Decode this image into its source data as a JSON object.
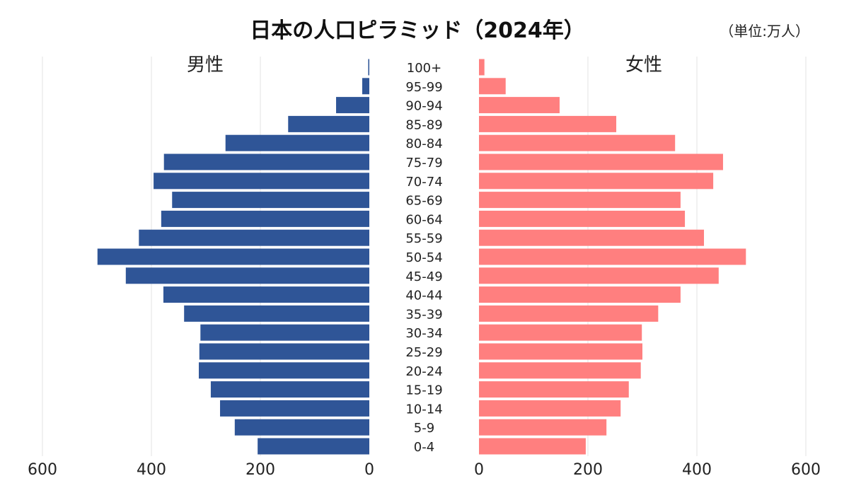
{
  "chart_data": {
    "type": "bar",
    "subtype": "population-pyramid",
    "title": "日本の人口ピラミッド（2024年）",
    "unit_label": "（単位:万人）",
    "categories": [
      "100+",
      "95-99",
      "90-94",
      "85-89",
      "80-84",
      "75-79",
      "70-74",
      "65-69",
      "60-64",
      "55-59",
      "50-54",
      "45-49",
      "40-44",
      "35-39",
      "30-34",
      "25-29",
      "20-24",
      "15-19",
      "10-14",
      "5-9",
      "0-4"
    ],
    "series": [
      {
        "name": "男性",
        "side": "left",
        "color": "#2F5597",
        "values": [
          2,
          13,
          61,
          149,
          264,
          377,
          396,
          362,
          382,
          423,
          499,
          447,
          378,
          340,
          310,
          312,
          313,
          291,
          274,
          247,
          205
        ]
      },
      {
        "name": "女性",
        "side": "right",
        "color": "#FF7F7F",
        "values": [
          10,
          49,
          148,
          252,
          360,
          448,
          430,
          370,
          378,
          413,
          490,
          440,
          370,
          329,
          299,
          300,
          297,
          275,
          260,
          234,
          196
        ]
      }
    ],
    "xlim": [
      0,
      600
    ],
    "ticks": [
      "600",
      "400",
      "200",
      "0"
    ],
    "ticks_right": [
      "0",
      "200",
      "400",
      "600"
    ],
    "grid": true,
    "legend": "none"
  }
}
